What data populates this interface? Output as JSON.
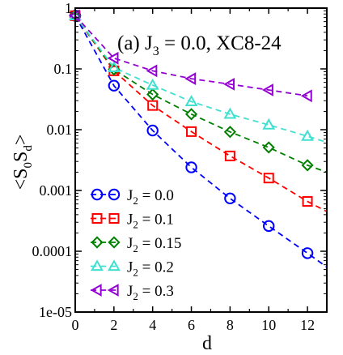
{
  "chart_data": {
    "type": "line",
    "title": "(a)  J3 = 0.0, XC8-24",
    "title_parts": {
      "prefix": "(a)  J",
      "sub": "3",
      "suffix": " = 0.0, XC8-24"
    },
    "xlabel": "d",
    "ylabel": "<S0Sd>",
    "ylabel_parts": {
      "a": "<S",
      "sub1": "0",
      "b": "S",
      "sub2": "d",
      "c": ">"
    },
    "xlim": [
      0,
      13
    ],
    "ylim": [
      1e-05,
      1
    ],
    "yscale": "log",
    "grid": false,
    "legend_position": "bottom-left",
    "x_ticks": [
      0,
      2,
      4,
      6,
      8,
      10,
      12
    ],
    "x_tick_labels": [
      "0",
      "2",
      "4",
      "6",
      "8",
      "10",
      "12"
    ],
    "y_ticks": [
      1,
      0.1,
      0.01,
      0.001,
      0.0001,
      1e-05
    ],
    "y_tick_labels": [
      "1",
      "0.1",
      "0.01",
      "0.001",
      "0.0001",
      "1e-05"
    ],
    "series": [
      {
        "name": "J2 = 0.0",
        "label_sub": "2",
        "label_value": " = 0.0",
        "color": "#0000ff",
        "marker": "circle",
        "x": [
          0,
          2,
          4,
          6,
          8,
          10,
          12
        ],
        "y": [
          0.75,
          0.053,
          0.0097,
          0.0024,
          0.00074,
          0.00026,
          9.3e-05
        ],
        "fit_end": [
          13,
          5.5e-05
        ]
      },
      {
        "name": "J2 = 0.1",
        "label_sub": "2",
        "label_value": " = 0.1",
        "color": "#ff0000",
        "marker": "square",
        "x": [
          0,
          2,
          4,
          6,
          8,
          10,
          12
        ],
        "y": [
          0.75,
          0.093,
          0.025,
          0.0093,
          0.0037,
          0.0016,
          0.00066
        ],
        "fit_end": [
          13,
          0.00045
        ]
      },
      {
        "name": "J2 = 0.15",
        "label_sub": "2",
        "label_value": " = 0.15",
        "color": "#008000",
        "marker": "diamond",
        "x": [
          0,
          2,
          4,
          6,
          8,
          10,
          12
        ],
        "y": [
          0.75,
          0.098,
          0.038,
          0.018,
          0.0092,
          0.0051,
          0.0026
        ],
        "fit_end": [
          13,
          0.002
        ]
      },
      {
        "name": "J2 = 0.2",
        "label_sub": "2",
        "label_value": " = 0.2",
        "color": "#40e0d0",
        "marker": "triangle-up",
        "x": [
          0,
          2,
          4,
          6,
          8,
          10,
          12
        ],
        "y": [
          0.75,
          0.105,
          0.054,
          0.029,
          0.018,
          0.012,
          0.0078
        ],
        "fit_end": [
          13,
          0.0062
        ]
      },
      {
        "name": "J2 = 0.3",
        "label_sub": "2",
        "label_value": " = 0.3",
        "color": "#9400d3",
        "marker": "triangle-left",
        "x": [
          0,
          2,
          4,
          6,
          8,
          10,
          12
        ],
        "y": [
          0.75,
          0.15,
          0.093,
          0.069,
          0.056,
          0.045,
          0.036
        ]
      }
    ]
  }
}
